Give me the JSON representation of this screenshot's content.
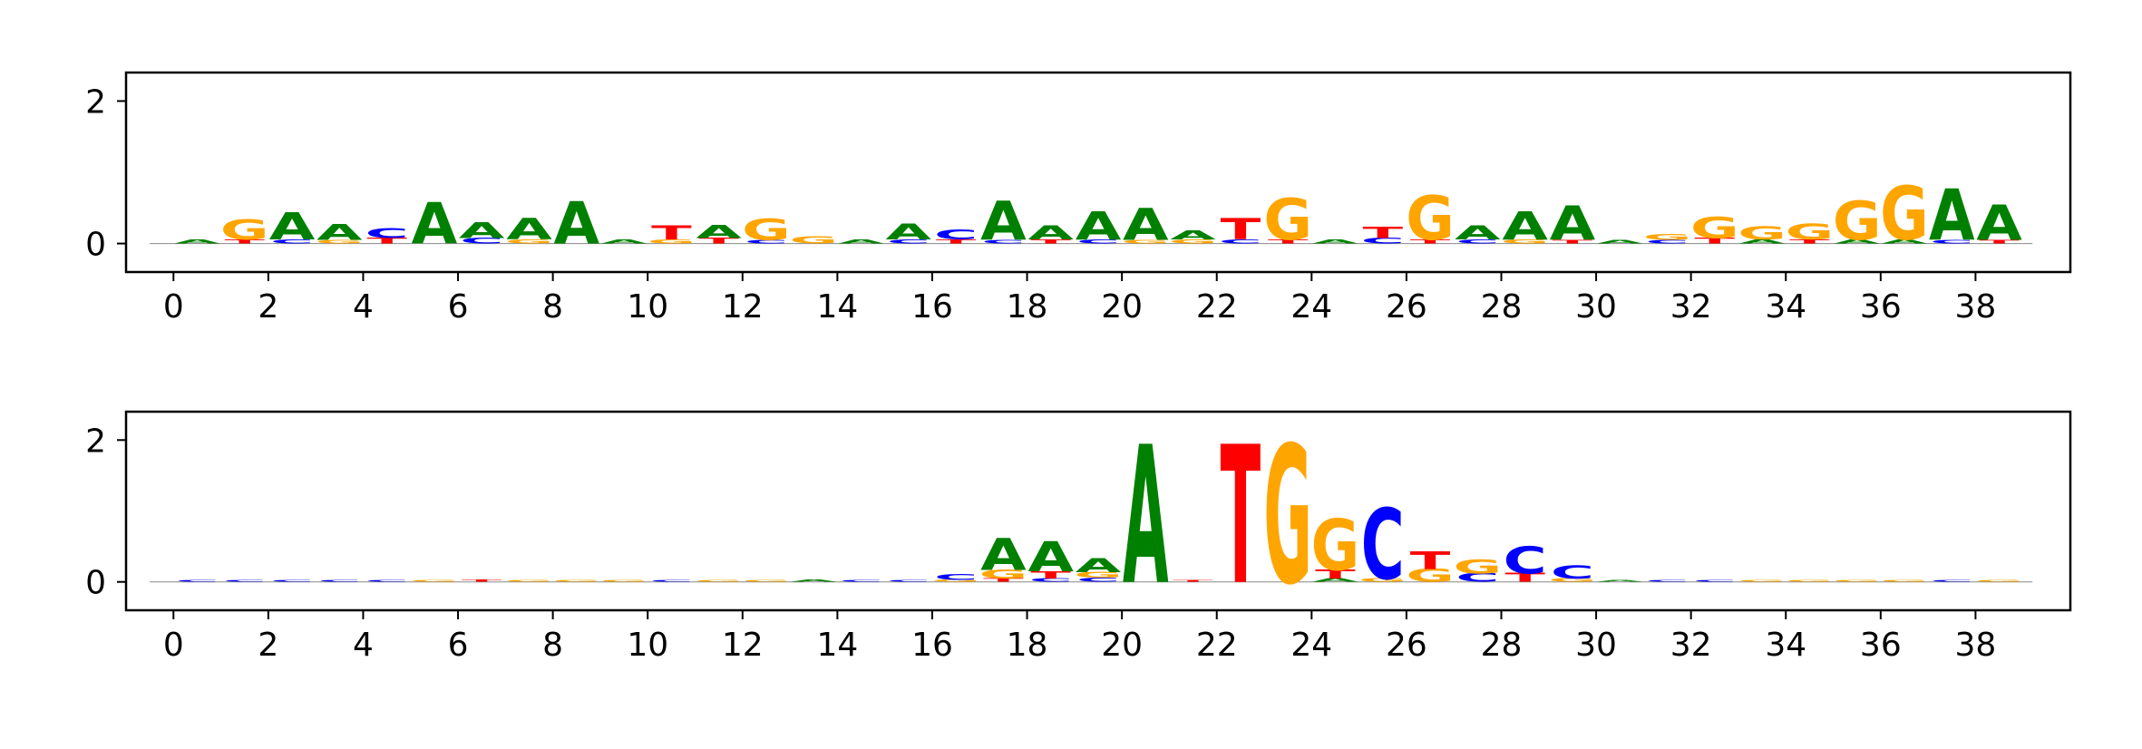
{
  "chart_data": [
    {
      "type": "sequence-logo",
      "title": "",
      "xlabel": "",
      "ylabel": "",
      "xlim": [
        -1,
        40
      ],
      "ylim": [
        -0.4,
        2.4
      ],
      "x_ticks": [
        0,
        2,
        4,
        6,
        8,
        10,
        12,
        14,
        16,
        18,
        20,
        22,
        24,
        26,
        28,
        30,
        32,
        34,
        36,
        38
      ],
      "y_ticks": [
        0,
        2
      ],
      "grid": false,
      "colors": {
        "A": "#008000",
        "C": "#0000ff",
        "G": "#ffa500",
        "T": "#ff0000"
      },
      "positions": [
        {
          "x": 0,
          "stack": [
            [
              "A",
              0.06
            ]
          ]
        },
        {
          "x": 1,
          "stack": [
            [
              "T",
              0.06
            ],
            [
              "G",
              0.28
            ]
          ]
        },
        {
          "x": 2,
          "stack": [
            [
              "C",
              0.06
            ],
            [
              "A",
              0.38
            ]
          ]
        },
        {
          "x": 3,
          "stack": [
            [
              "G",
              0.05
            ],
            [
              "A",
              0.22
            ]
          ]
        },
        {
          "x": 4,
          "stack": [
            [
              "T",
              0.08
            ],
            [
              "C",
              0.14
            ]
          ]
        },
        {
          "x": 5,
          "stack": [
            [
              "A",
              0.58
            ]
          ]
        },
        {
          "x": 6,
          "stack": [
            [
              "C",
              0.08
            ],
            [
              "A",
              0.22
            ]
          ]
        },
        {
          "x": 7,
          "stack": [
            [
              "G",
              0.06
            ],
            [
              "A",
              0.3
            ]
          ]
        },
        {
          "x": 8,
          "stack": [
            [
              "A",
              0.6
            ]
          ]
        },
        {
          "x": 9,
          "stack": [
            [
              "A",
              0.06
            ]
          ]
        },
        {
          "x": 10,
          "stack": [
            [
              "G",
              0.06
            ],
            [
              "T",
              0.2
            ]
          ]
        },
        {
          "x": 11,
          "stack": [
            [
              "T",
              0.08
            ],
            [
              "A",
              0.18
            ]
          ]
        },
        {
          "x": 12,
          "stack": [
            [
              "C",
              0.05
            ],
            [
              "G",
              0.3
            ]
          ]
        },
        {
          "x": 13,
          "stack": [
            [
              "G",
              0.1
            ]
          ]
        },
        {
          "x": 14,
          "stack": [
            [
              "A",
              0.06
            ]
          ]
        },
        {
          "x": 15,
          "stack": [
            [
              "C",
              0.06
            ],
            [
              "A",
              0.22
            ]
          ]
        },
        {
          "x": 16,
          "stack": [
            [
              "T",
              0.06
            ],
            [
              "C",
              0.14
            ]
          ]
        },
        {
          "x": 17,
          "stack": [
            [
              "C",
              0.05
            ],
            [
              "A",
              0.55
            ]
          ]
        },
        {
          "x": 18,
          "stack": [
            [
              "T",
              0.06
            ],
            [
              "A",
              0.2
            ]
          ]
        },
        {
          "x": 19,
          "stack": [
            [
              "C",
              0.06
            ],
            [
              "A",
              0.4
            ]
          ]
        },
        {
          "x": 20,
          "stack": [
            [
              "G",
              0.05
            ],
            [
              "A",
              0.45
            ]
          ]
        },
        {
          "x": 21,
          "stack": [
            [
              "G",
              0.06
            ],
            [
              "A",
              0.12
            ]
          ]
        },
        {
          "x": 22,
          "stack": [
            [
              "C",
              0.06
            ],
            [
              "T",
              0.3
            ]
          ]
        },
        {
          "x": 23,
          "stack": [
            [
              "T",
              0.06
            ],
            [
              "G",
              0.58
            ]
          ]
        },
        {
          "x": 24,
          "stack": [
            [
              "A",
              0.06
            ]
          ]
        },
        {
          "x": 25,
          "stack": [
            [
              "C",
              0.08
            ],
            [
              "T",
              0.16
            ]
          ]
        },
        {
          "x": 26,
          "stack": [
            [
              "T",
              0.06
            ],
            [
              "G",
              0.62
            ]
          ]
        },
        {
          "x": 27,
          "stack": [
            [
              "C",
              0.06
            ],
            [
              "A",
              0.2
            ]
          ]
        },
        {
          "x": 28,
          "stack": [
            [
              "G",
              0.06
            ],
            [
              "A",
              0.4
            ]
          ]
        },
        {
          "x": 29,
          "stack": [
            [
              "T",
              0.05
            ],
            [
              "A",
              0.48
            ]
          ]
        },
        {
          "x": 30,
          "stack": [
            [
              "A",
              0.05
            ]
          ]
        },
        {
          "x": 31,
          "stack": [
            [
              "C",
              0.05
            ],
            [
              "G",
              0.08
            ]
          ]
        },
        {
          "x": 32,
          "stack": [
            [
              "T",
              0.08
            ],
            [
              "G",
              0.3
            ]
          ]
        },
        {
          "x": 33,
          "stack": [
            [
              "A",
              0.06
            ],
            [
              "G",
              0.18
            ]
          ]
        },
        {
          "x": 34,
          "stack": [
            [
              "T",
              0.06
            ],
            [
              "G",
              0.22
            ]
          ]
        },
        {
          "x": 35,
          "stack": [
            [
              "A",
              0.06
            ],
            [
              "G",
              0.55
            ]
          ]
        },
        {
          "x": 36,
          "stack": [
            [
              "A",
              0.06
            ],
            [
              "G",
              0.75
            ]
          ]
        },
        {
          "x": 37,
          "stack": [
            [
              "C",
              0.05
            ],
            [
              "A",
              0.72
            ]
          ]
        },
        {
          "x": 38,
          "stack": [
            [
              "T",
              0.05
            ],
            [
              "A",
              0.5
            ]
          ]
        }
      ]
    },
    {
      "type": "sequence-logo",
      "title": "",
      "xlabel": "",
      "ylabel": "",
      "xlim": [
        -1,
        40
      ],
      "ylim": [
        -0.4,
        2.4
      ],
      "x_ticks": [
        0,
        2,
        4,
        6,
        8,
        10,
        12,
        14,
        16,
        18,
        20,
        22,
        24,
        26,
        28,
        30,
        32,
        34,
        36,
        38
      ],
      "y_ticks": [
        0,
        2
      ],
      "grid": false,
      "colors": {
        "A": "#008000",
        "C": "#0000ff",
        "G": "#ffa500",
        "T": "#ff0000"
      },
      "positions": [
        {
          "x": 0,
          "stack": [
            [
              "C",
              0.02
            ]
          ]
        },
        {
          "x": 1,
          "stack": [
            [
              "C",
              0.02
            ]
          ]
        },
        {
          "x": 2,
          "stack": [
            [
              "C",
              0.02
            ]
          ]
        },
        {
          "x": 3,
          "stack": [
            [
              "C",
              0.02
            ]
          ]
        },
        {
          "x": 4,
          "stack": [
            [
              "C",
              0.02
            ]
          ]
        },
        {
          "x": 5,
          "stack": [
            [
              "G",
              0.02
            ]
          ]
        },
        {
          "x": 6,
          "stack": [
            [
              "T",
              0.03
            ]
          ]
        },
        {
          "x": 7,
          "stack": [
            [
              "G",
              0.02
            ]
          ]
        },
        {
          "x": 8,
          "stack": [
            [
              "G",
              0.02
            ]
          ]
        },
        {
          "x": 9,
          "stack": [
            [
              "G",
              0.02
            ]
          ]
        },
        {
          "x": 10,
          "stack": [
            [
              "C",
              0.02
            ]
          ]
        },
        {
          "x": 11,
          "stack": [
            [
              "G",
              0.02
            ]
          ]
        },
        {
          "x": 12,
          "stack": [
            [
              "G",
              0.02
            ]
          ]
        },
        {
          "x": 13,
          "stack": [
            [
              "A",
              0.03
            ]
          ]
        },
        {
          "x": 14,
          "stack": [
            [
              "C",
              0.02
            ]
          ]
        },
        {
          "x": 15,
          "stack": [
            [
              "C",
              0.02
            ]
          ]
        },
        {
          "x": 16,
          "stack": [
            [
              "G",
              0.03
            ],
            [
              "C",
              0.08
            ]
          ]
        },
        {
          "x": 17,
          "stack": [
            [
              "T",
              0.05
            ],
            [
              "G",
              0.12
            ],
            [
              "A",
              0.45
            ]
          ]
        },
        {
          "x": 18,
          "stack": [
            [
              "C",
              0.05
            ],
            [
              "T",
              0.1
            ],
            [
              "A",
              0.42
            ]
          ]
        },
        {
          "x": 19,
          "stack": [
            [
              "C",
              0.06
            ],
            [
              "G",
              0.08
            ],
            [
              "A",
              0.2
            ]
          ]
        },
        {
          "x": 20,
          "stack": [
            [
              "A",
              1.95
            ]
          ]
        },
        {
          "x": 21,
          "stack": [
            [
              "T",
              0.02
            ]
          ]
        },
        {
          "x": 22,
          "stack": [
            [
              "T",
              1.95
            ]
          ]
        },
        {
          "x": 23,
          "stack": [
            [
              "G",
              1.95
            ]
          ]
        },
        {
          "x": 24,
          "stack": [
            [
              "A",
              0.05
            ],
            [
              "T",
              0.12
            ],
            [
              "G",
              0.72
            ]
          ]
        },
        {
          "x": 25,
          "stack": [
            [
              "G",
              0.05
            ],
            [
              "C",
              1.0
            ]
          ]
        },
        {
          "x": 26,
          "stack": [
            [
              "G",
              0.18
            ],
            [
              "T",
              0.25
            ]
          ]
        },
        {
          "x": 27,
          "stack": [
            [
              "C",
              0.12
            ],
            [
              "G",
              0.2
            ]
          ]
        },
        {
          "x": 28,
          "stack": [
            [
              "T",
              0.12
            ],
            [
              "C",
              0.38
            ]
          ]
        },
        {
          "x": 29,
          "stack": [
            [
              "G",
              0.05
            ],
            [
              "C",
              0.18
            ]
          ]
        },
        {
          "x": 30,
          "stack": [
            [
              "A",
              0.02
            ]
          ]
        },
        {
          "x": 31,
          "stack": [
            [
              "C",
              0.02
            ]
          ]
        },
        {
          "x": 32,
          "stack": [
            [
              "C",
              0.02
            ]
          ]
        },
        {
          "x": 33,
          "stack": [
            [
              "G",
              0.02
            ]
          ]
        },
        {
          "x": 34,
          "stack": [
            [
              "G",
              0.02
            ]
          ]
        },
        {
          "x": 35,
          "stack": [
            [
              "G",
              0.02
            ]
          ]
        },
        {
          "x": 36,
          "stack": [
            [
              "G",
              0.02
            ]
          ]
        },
        {
          "x": 37,
          "stack": [
            [
              "C",
              0.02
            ]
          ]
        },
        {
          "x": 38,
          "stack": [
            [
              "G",
              0.02
            ]
          ]
        }
      ]
    }
  ]
}
